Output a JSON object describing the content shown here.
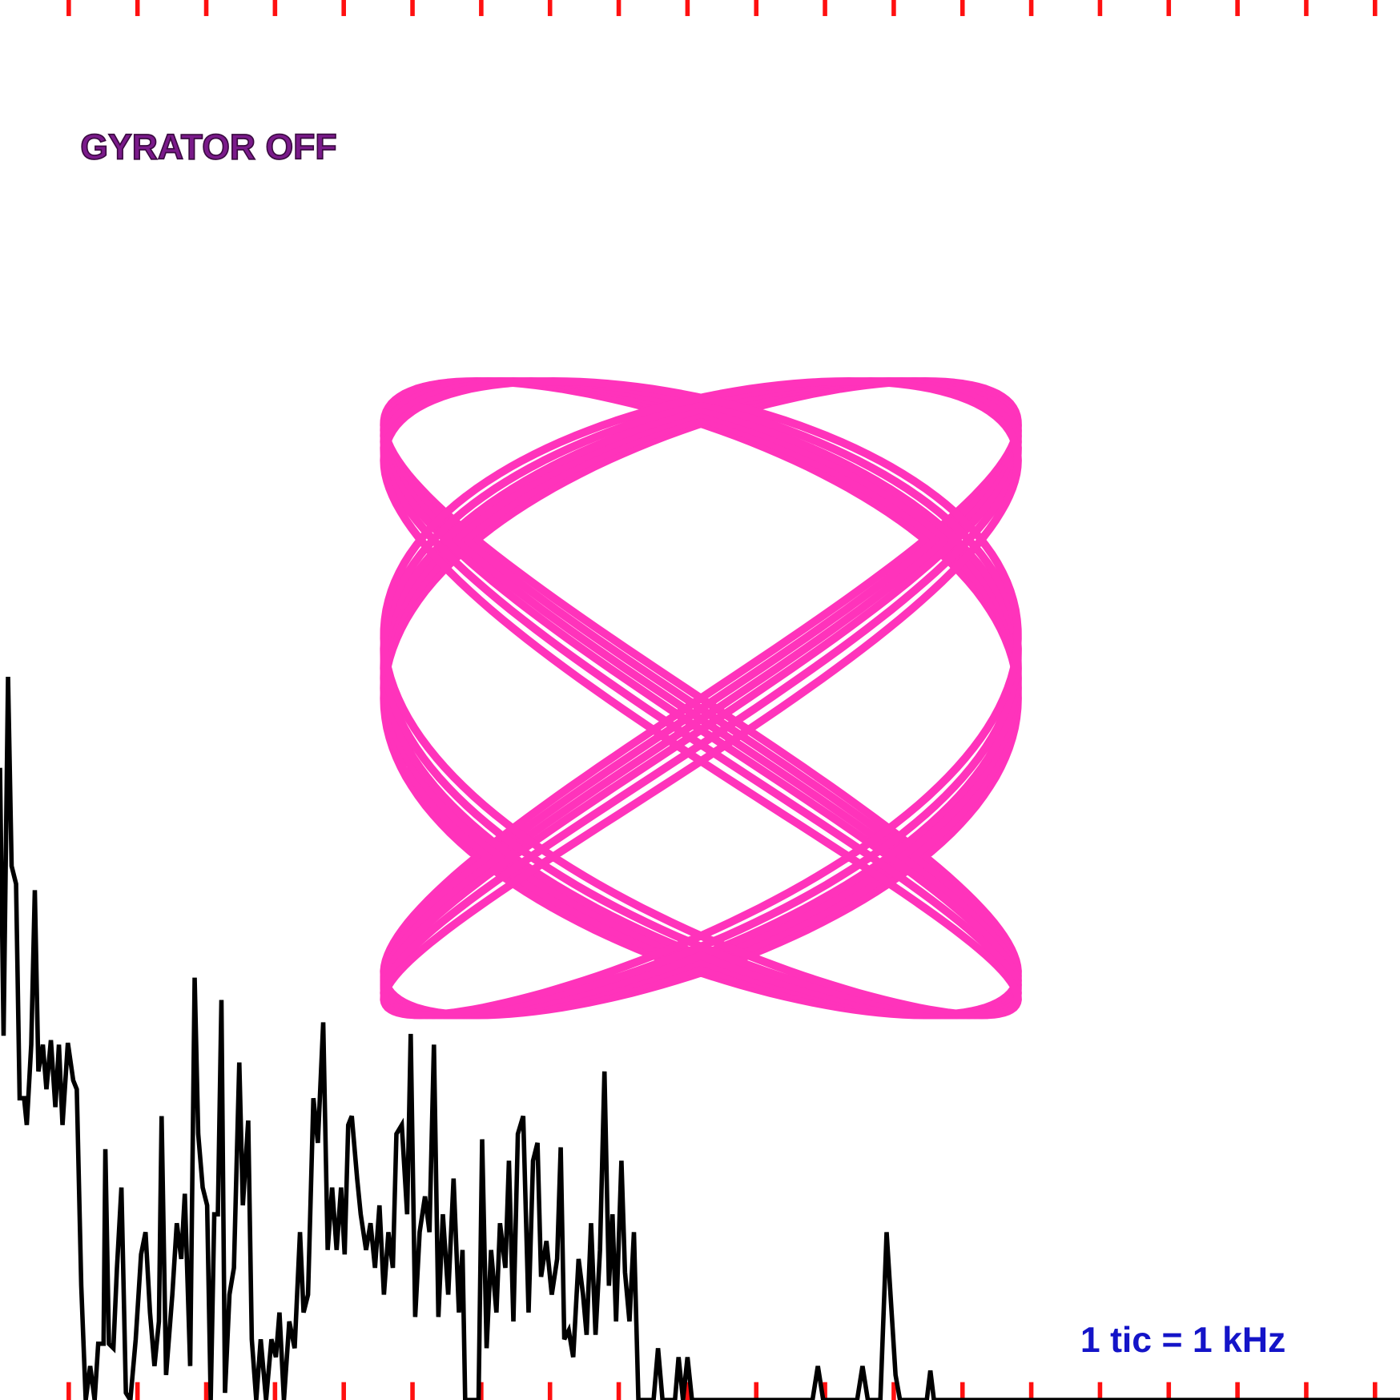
{
  "labels": {
    "status": "GYRATOR OFF",
    "scale": "1 tic = 1 kHz"
  }
}
